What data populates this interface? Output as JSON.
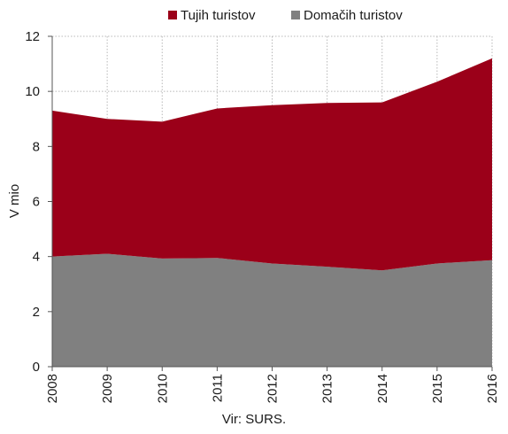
{
  "chart_data": {
    "type": "area",
    "stacked": true,
    "x": [
      "2008",
      "2009",
      "2010",
      "2011",
      "2012",
      "2013",
      "2014",
      "2015",
      "2016"
    ],
    "series": [
      {
        "name": "Domačih turistov",
        "color": "#808080",
        "values": [
          4.0,
          4.1,
          3.93,
          3.95,
          3.75,
          3.63,
          3.5,
          3.75,
          3.87
        ]
      },
      {
        "name": "Tujih turistov",
        "color": "#9b0019",
        "values": [
          5.3,
          4.9,
          4.97,
          5.43,
          5.75,
          5.95,
          6.1,
          6.6,
          7.33
        ]
      }
    ],
    "legend_order": [
      "Tujih turistov",
      "Domačih turistov"
    ],
    "legend_position": "top",
    "ylabel": "V mio",
    "xlabel": "",
    "ylim": [
      0,
      12
    ],
    "yticks": [
      0,
      2,
      4,
      6,
      8,
      10,
      12
    ],
    "grid": true,
    "grid_style": "dotted",
    "source": "Vir: SURS."
  }
}
